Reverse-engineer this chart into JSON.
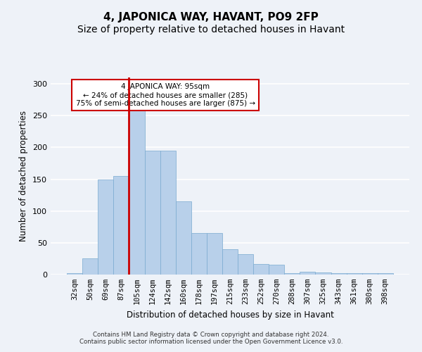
{
  "title": "4, JAPONICA WAY, HAVANT, PO9 2FP",
  "subtitle": "Size of property relative to detached houses in Havant",
  "xlabel": "Distribution of detached houses by size in Havant",
  "ylabel": "Number of detached properties",
  "footer_line1": "Contains HM Land Registry data © Crown copyright and database right 2024.",
  "footer_line2": "Contains public sector information licensed under the Open Government Licence v3.0.",
  "annotation_line1": "4 JAPONICA WAY: 95sqm",
  "annotation_line2": "← 24% of detached houses are smaller (285)",
  "annotation_line3": "75% of semi-detached houses are larger (875) →",
  "bar_color": "#b8d0ea",
  "bar_edge_color": "#7aaad0",
  "redline_color": "#cc0000",
  "categories": [
    "32sqm",
    "50sqm",
    "69sqm",
    "87sqm",
    "105sqm",
    "124sqm",
    "142sqm",
    "160sqm",
    "178sqm",
    "197sqm",
    "215sqm",
    "233sqm",
    "252sqm",
    "270sqm",
    "288sqm",
    "307sqm",
    "325sqm",
    "343sqm",
    "361sqm",
    "380sqm",
    "398sqm"
  ],
  "values": [
    2,
    26,
    150,
    155,
    260,
    195,
    195,
    115,
    65,
    65,
    40,
    32,
    17,
    16,
    2,
    4,
    3,
    2,
    2,
    2,
    2
  ],
  "ylim": [
    0,
    310
  ],
  "yticks": [
    0,
    50,
    100,
    150,
    200,
    250,
    300
  ],
  "background_color": "#eef2f8",
  "grid_color": "#ffffff",
  "title_fontsize": 11,
  "subtitle_fontsize": 10,
  "label_fontsize": 8.5,
  "tick_fontsize": 7.5,
  "redline_x": 3.5
}
